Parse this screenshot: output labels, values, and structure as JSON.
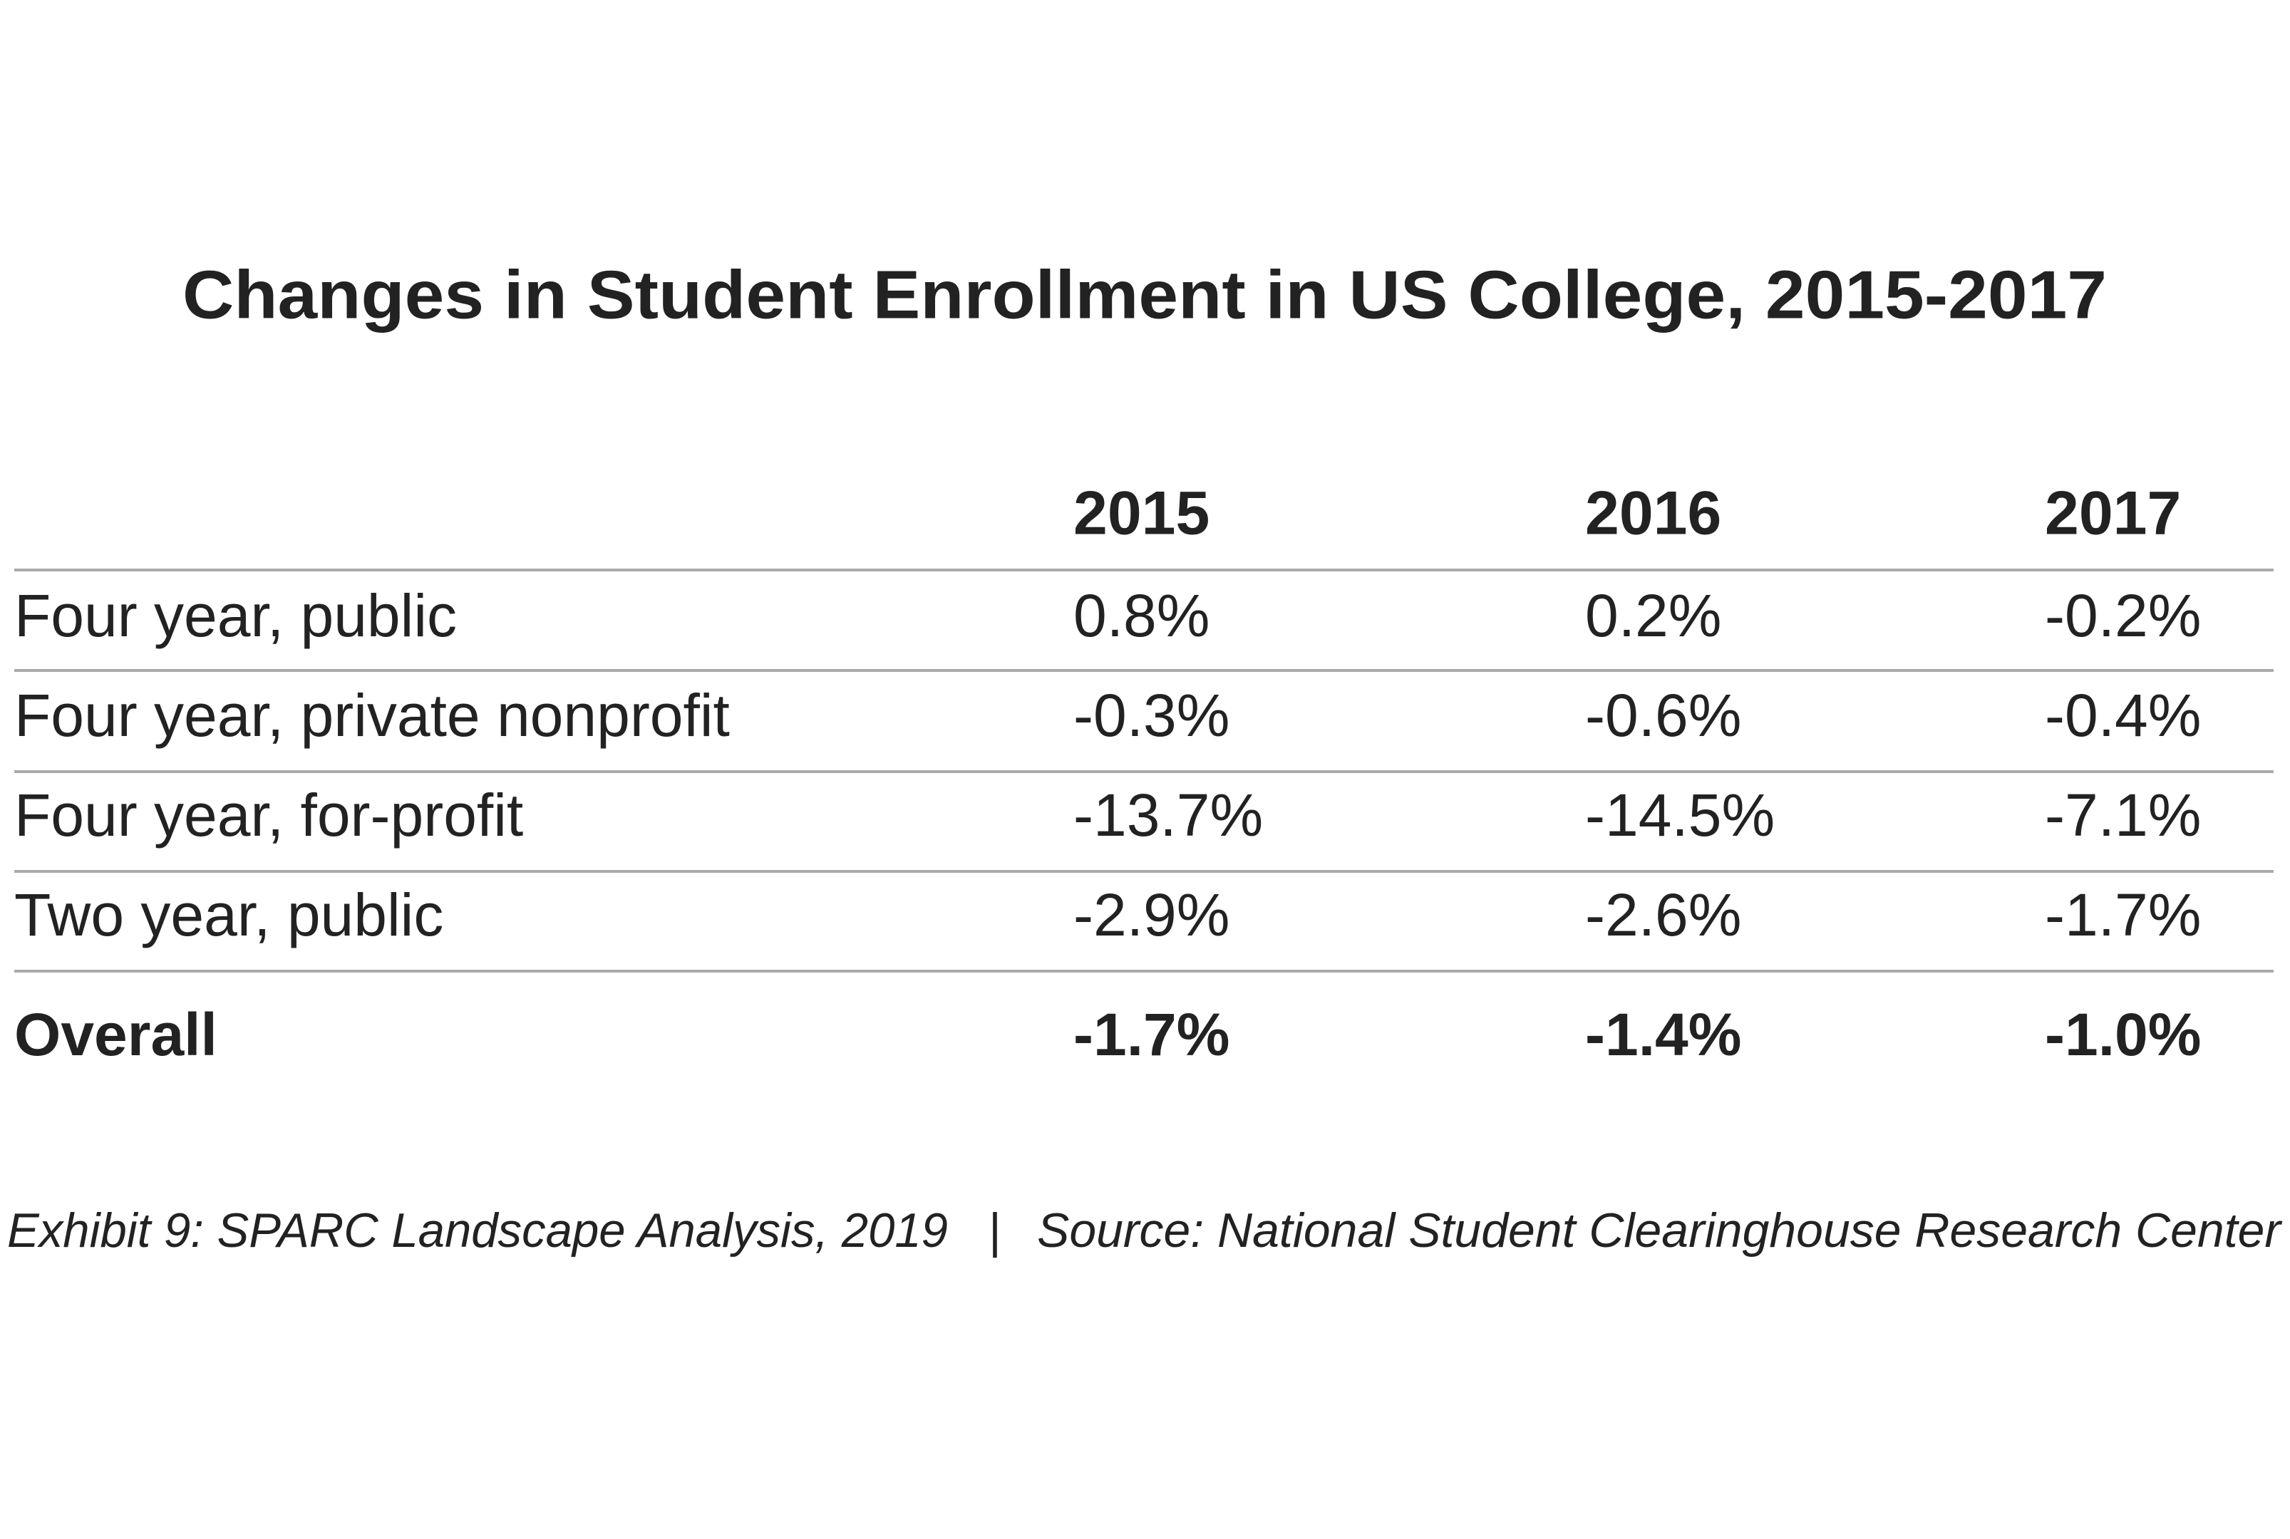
{
  "title": "Changes in Student Enrollment in US College, 2015-2017",
  "table": {
    "header": [
      "2015",
      "2016",
      "2017"
    ],
    "rows": [
      [
        "Four year, public",
        "0.8%",
        "0.2%",
        "-0.2%"
      ],
      [
        "Four year, private nonprofit",
        "-0.3%",
        "-0.6%",
        "-0.4%"
      ],
      [
        "Four year, for-profit",
        "-13.7%",
        "-14.5%",
        "-7.1%"
      ],
      [
        "Two year, public",
        "-2.9%",
        "-2.6%",
        "-1.7%"
      ]
    ],
    "total": [
      "Overall",
      "-1.7%",
      "-1.4%",
      "-1.0%"
    ]
  },
  "footer": {
    "exhibit": "Exhibit 9: SPARC Landscape Analysis, 2019",
    "separator": "|",
    "source": "Source: National Student Clearinghouse Research Center"
  }
}
